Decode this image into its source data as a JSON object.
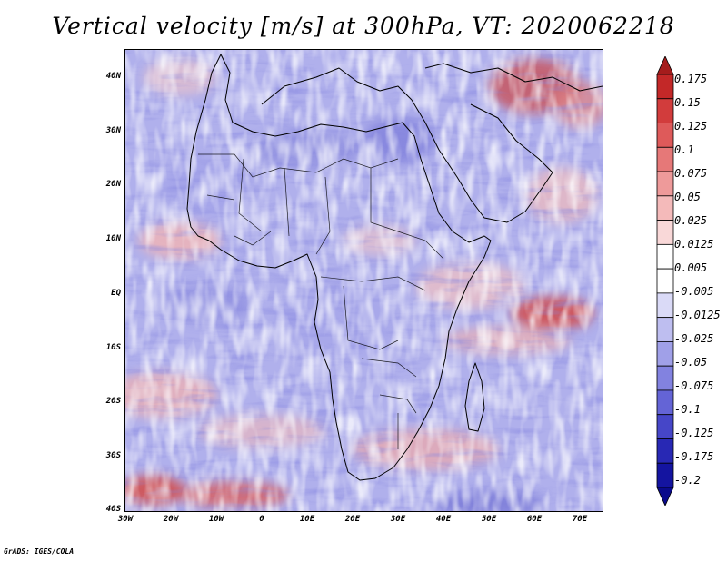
{
  "title": "Vertical velocity [m/s] at 300hPa, VT: 2020062218",
  "footer": "GrADS: IGES/COLA",
  "y_axis_labels": [
    "40N",
    "30N",
    "20N",
    "10N",
    "EQ",
    "10S",
    "20S",
    "30S",
    "40S"
  ],
  "x_axis_labels": [
    "30W",
    "20W",
    "10W",
    "0",
    "10E",
    "20E",
    "30E",
    "40E",
    "50E",
    "60E",
    "70E"
  ],
  "colorbar": {
    "labels": [
      "0.175",
      "0.15",
      "0.125",
      "0.1",
      "0.075",
      "0.05",
      "0.025",
      "0.0125",
      "0.005",
      "-0.005",
      "-0.0125",
      "-0.025",
      "-0.05",
      "-0.075",
      "-0.1",
      "-0.125",
      "-0.175",
      "-0.2"
    ],
    "colors": [
      "#a51c1c",
      "#c32828",
      "#d23c3c",
      "#de5a5a",
      "#e67878",
      "#ee9a9a",
      "#f4baba",
      "#f9d8d8",
      "#ffffff",
      "#ffffff",
      "#dadaf7",
      "#bebef0",
      "#a0a0e8",
      "#8282e0",
      "#6464d6",
      "#4646c8",
      "#2828b4",
      "#1414a0",
      "#0a0a8c"
    ]
  }
}
